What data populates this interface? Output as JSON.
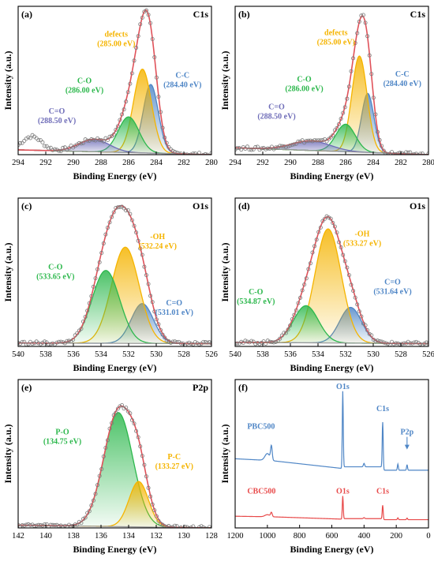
{
  "colors": {
    "raw": "#7a7a7a",
    "fit": "#e0525a",
    "baseline": "#9a9a9a",
    "blue": "#4f86c6",
    "orange": "#f5b400",
    "green": "#2db84d",
    "purple": "#6e6cb8",
    "survey_blue": "#4f86c6",
    "survey_red": "#e84a4a"
  },
  "chart_data": [
    {
      "id": "a",
      "type": "line",
      "panel_label": "(a)",
      "region": "C1s",
      "xlabel": "Binding Energy (eV)",
      "ylabel": "Intensity (a.u.)",
      "xlim": [
        294,
        280
      ],
      "xticks": [
        294,
        292,
        290,
        288,
        286,
        284,
        282,
        280
      ],
      "ylim": [
        0,
        1.08
      ],
      "baseline": [
        0.035,
        0.0
      ],
      "raw_extra": [
        {
          "center": 293.0,
          "sigma": 0.7,
          "amp": 0.1
        }
      ],
      "peaks": [
        {
          "name": "C-C",
          "center": 284.4,
          "sigma": 0.55,
          "amp": 0.5,
          "color": "blue"
        },
        {
          "name": "defects",
          "center": 285.0,
          "sigma": 0.65,
          "amp": 0.61,
          "color": "orange"
        },
        {
          "name": "C-O",
          "center": 286.0,
          "sigma": 0.75,
          "amp": 0.26,
          "color": "green"
        },
        {
          "name": "C=O",
          "center": 288.5,
          "sigma": 1.1,
          "amp": 0.09,
          "color": "purple"
        }
      ],
      "labels": [
        {
          "name": "defects",
          "energy": "(285.00 eV)",
          "color": "orange",
          "x": 286.9,
          "y": 0.86
        },
        {
          "name": "C-O",
          "energy": "(286.00 eV)",
          "color": "green",
          "x": 289.2,
          "y": 0.52
        },
        {
          "name": "C-C",
          "energy": "(284.40 eV)",
          "color": "blue",
          "x": 282.1,
          "y": 0.56
        },
        {
          "name": "C=O",
          "energy": "(288.50 eV)",
          "color": "purple",
          "x": 291.2,
          "y": 0.3
        }
      ]
    },
    {
      "id": "b",
      "type": "line",
      "panel_label": "(b)",
      "region": "C1s",
      "xlabel": "Binding Energy (eV)",
      "ylabel": "Intensity (a.u.)",
      "xlim": [
        294,
        280
      ],
      "xticks": [
        294,
        292,
        290,
        288,
        286,
        284,
        282,
        280
      ],
      "ylim": [
        0,
        1.08
      ],
      "baseline": [
        0.05,
        0.0
      ],
      "raw_extra": [],
      "peaks": [
        {
          "name": "C-C",
          "center": 284.4,
          "sigma": 0.45,
          "amp": 0.43,
          "color": "blue"
        },
        {
          "name": "defects",
          "center": 285.0,
          "sigma": 0.55,
          "amp": 0.7,
          "color": "orange"
        },
        {
          "name": "C-O",
          "center": 286.0,
          "sigma": 0.7,
          "amp": 0.2,
          "color": "green"
        },
        {
          "name": "C=O",
          "center": 288.5,
          "sigma": 1.4,
          "amp": 0.07,
          "color": "purple"
        }
      ],
      "labels": [
        {
          "name": "defects",
          "energy": "(285.00 eV)",
          "color": "orange",
          "x": 286.7,
          "y": 0.87
        },
        {
          "name": "C-O",
          "energy": "(286.00 eV)",
          "color": "green",
          "x": 289.0,
          "y": 0.53
        },
        {
          "name": "C-C",
          "energy": "(284.40 eV)",
          "color": "blue",
          "x": 281.9,
          "y": 0.57
        },
        {
          "name": "C=O",
          "energy": "(288.50 eV)",
          "color": "purple",
          "x": 291.0,
          "y": 0.33
        }
      ]
    },
    {
      "id": "c",
      "type": "line",
      "panel_label": "(c)",
      "region": "O1s",
      "xlabel": "Binding Energy (eV)",
      "ylabel": "Intensity (a.u.)",
      "xlim": [
        540,
        526
      ],
      "xticks": [
        540,
        538,
        536,
        534,
        532,
        530,
        528,
        526
      ],
      "ylim": [
        0,
        1.08
      ],
      "baseline": [
        0.025,
        0.02
      ],
      "raw_extra": [],
      "peaks": [
        {
          "name": "C=O",
          "center": 531.01,
          "sigma": 0.8,
          "amp": 0.29,
          "color": "blue"
        },
        {
          "name": "-OH",
          "center": 532.24,
          "sigma": 1.0,
          "amp": 0.7,
          "color": "orange"
        },
        {
          "name": "C-O",
          "center": 533.65,
          "sigma": 1.0,
          "amp": 0.53,
          "color": "green"
        }
      ],
      "labels": [
        {
          "name": "-OH",
          "energy": "(532.24 eV)",
          "color": "orange",
          "x": 529.9,
          "y": 0.78
        },
        {
          "name": "C-O",
          "energy": "(533.65 eV)",
          "color": "green",
          "x": 537.3,
          "y": 0.56
        },
        {
          "name": "C=O",
          "energy": "(531.01 eV)",
          "color": "blue",
          "x": 528.7,
          "y": 0.3
        }
      ]
    },
    {
      "id": "d",
      "type": "line",
      "panel_label": "(d)",
      "region": "O1s",
      "xlabel": "Binding Energy (eV)",
      "ylabel": "Intensity (a.u.)",
      "xlim": [
        540,
        526
      ],
      "xticks": [
        540,
        538,
        536,
        534,
        532,
        530,
        528,
        526
      ],
      "ylim": [
        0,
        1.08
      ],
      "baseline": [
        0.03,
        0.02
      ],
      "raw_extra": [],
      "peaks": [
        {
          "name": "C=O",
          "center": 531.64,
          "sigma": 0.8,
          "amp": 0.26,
          "color": "blue"
        },
        {
          "name": "-OH",
          "center": 533.27,
          "sigma": 0.95,
          "amp": 0.83,
          "color": "orange"
        },
        {
          "name": "C-O",
          "center": 534.87,
          "sigma": 0.9,
          "amp": 0.27,
          "color": "green"
        }
      ],
      "labels": [
        {
          "name": "-OH",
          "energy": "(533.27 eV)",
          "color": "orange",
          "x": 530.8,
          "y": 0.8
        },
        {
          "name": "C-O",
          "energy": "(534.87 eV)",
          "color": "green",
          "x": 538.5,
          "y": 0.38
        },
        {
          "name": "C=O",
          "energy": "(531.64 eV)",
          "color": "blue",
          "x": 528.6,
          "y": 0.45
        }
      ]
    },
    {
      "id": "e",
      "type": "line",
      "panel_label": "(e)",
      "region": "P2p",
      "xlabel": "Binding Energy (eV)",
      "ylabel": "Intensity (a.u.)",
      "xlim": [
        142,
        128
      ],
      "xticks": [
        142,
        140,
        138,
        136,
        134,
        132,
        130,
        128
      ],
      "ylim": [
        0,
        1.08
      ],
      "baseline": [
        0.02,
        0.0
      ],
      "raw_extra": [],
      "peaks": [
        {
          "name": "P-O",
          "center": 134.75,
          "sigma": 1.05,
          "amp": 0.83,
          "color": "green"
        },
        {
          "name": "P-C",
          "center": 133.27,
          "sigma": 0.7,
          "amp": 0.33,
          "color": "orange"
        }
      ],
      "labels": [
        {
          "name": "P-O",
          "energy": "(134.75 eV)",
          "color": "green",
          "x": 138.8,
          "y": 0.68
        },
        {
          "name": "P-C",
          "energy": "(133.27 eV)",
          "color": "orange",
          "x": 130.7,
          "y": 0.5
        }
      ]
    },
    {
      "id": "f",
      "type": "line",
      "panel_label": "(f)",
      "xlabel": "Binding Energy (eV)",
      "ylabel": "Intensity (a.u.)",
      "xlim": [
        1200,
        0
      ],
      "xticks": [
        1200,
        1000,
        800,
        600,
        400,
        200,
        0
      ],
      "ylim": [
        0,
        1.08
      ],
      "series": [
        {
          "name": "PBC500",
          "color": "survey_blue",
          "offset": 0.42,
          "scale": 1.0,
          "x": 1125,
          "y": 0.72
        },
        {
          "name": "CBC500",
          "color": "survey_red",
          "offset": 0.06,
          "scale": 0.3,
          "x": 1125,
          "y": 0.25
        }
      ],
      "annotations": [
        {
          "text": "O1s",
          "color": "survey_blue",
          "x": 532,
          "y": 1.01
        },
        {
          "text": "C1s",
          "color": "survey_blue",
          "x": 284,
          "y": 0.85
        },
        {
          "text": "P2p",
          "color": "survey_blue",
          "x": 133,
          "y": 0.68,
          "arrow": true
        },
        {
          "text": "O1s",
          "color": "survey_red",
          "x": 532,
          "y": 0.25
        },
        {
          "text": "C1s",
          "color": "survey_red",
          "x": 284,
          "y": 0.25
        }
      ]
    }
  ]
}
